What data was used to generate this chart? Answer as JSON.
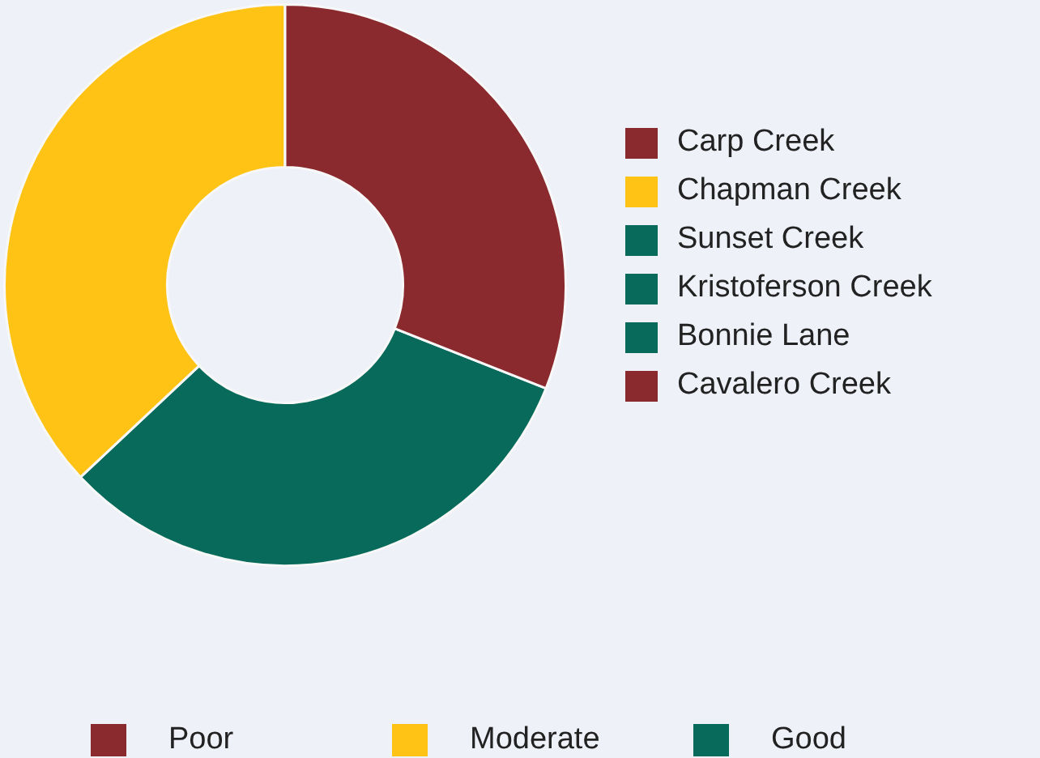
{
  "chart_data": [
    {
      "type": "donut",
      "categories": [
        "Poor",
        "Moderate",
        "Good"
      ],
      "values": [
        31,
        37,
        32
      ],
      "colors": [
        "#8b2a2e",
        "#fec314",
        "#076a5a"
      ],
      "legend": "bottom"
    },
    {
      "type": "other",
      "categories": [
        "Carp Creek",
        "Chapman Creek",
        "Sunset Creek",
        "Kristoferson Creek",
        "Bonnie Lane",
        "Cavalero Creek"
      ],
      "colors": [
        "#8b2a2e",
        "#fec314",
        "#076a5a",
        "#076a5a",
        "#076a5a",
        "#8b2a2e"
      ]
    }
  ]
}
